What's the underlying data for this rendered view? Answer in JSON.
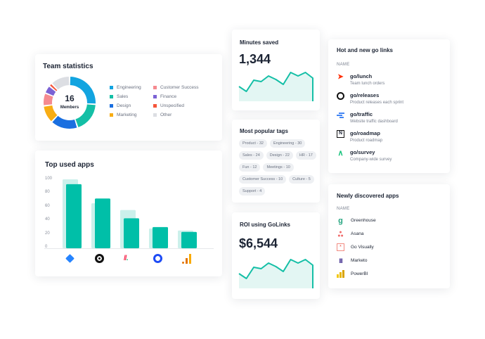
{
  "team_statistics": {
    "title": "Team statistics",
    "center_value": "16",
    "center_label": "Members",
    "legend": [
      {
        "label": "Engineering",
        "color": "#12a4e0",
        "value": 26
      },
      {
        "label": "Sales",
        "color": "#14bfa6",
        "value": 19
      },
      {
        "label": "Design",
        "color": "#1a6fe0",
        "value": 17
      },
      {
        "label": "Marketing",
        "color": "#f8ad14",
        "value": 11
      },
      {
        "label": "Customer Success",
        "color": "#f58a90",
        "value": 8
      },
      {
        "label": "Finance",
        "color": "#7b62d4",
        "value": 5
      },
      {
        "label": "Unspecified",
        "color": "#f5553a",
        "value": 2
      },
      {
        "label": "Other",
        "color": "#dcdee3",
        "value": 12
      }
    ]
  },
  "top_used_apps": {
    "title": "Top used apps",
    "chart_data": {
      "type": "bar",
      "categories": [
        "Jira",
        "GitHub",
        "Monday",
        "Productboard",
        "Google Analytics"
      ],
      "yticks": [
        "100",
        "80",
        "60",
        "40",
        "20",
        "0"
      ],
      "ylim": [
        0,
        100
      ],
      "series": [
        {
          "values": [
            101,
            66,
            56,
            29,
            26
          ],
          "color": "#cbf0eb"
        },
        {
          "values": [
            94,
            73,
            44,
            31,
            24
          ],
          "color": "#00bfa8"
        }
      ]
    }
  },
  "minutes_saved": {
    "title": "Minutes saved",
    "value": "1,344",
    "sparkline": [
      13,
      6,
      22,
      20,
      28,
      23,
      16,
      33,
      28,
      33,
      25
    ]
  },
  "popular_tags": {
    "title": "Most popular tags",
    "tags": [
      "Product - 32",
      "Engineering - 30",
      "Sales - 24",
      "Design - 22",
      "HR - 17",
      "Fun - 12",
      "Meetings - 10",
      "Customer Success - 10",
      "Culture - 5",
      "Support - 4"
    ]
  },
  "roi": {
    "title": "ROI using GoLinks",
    "value": "$6,544",
    "sparkline": [
      13,
      6,
      22,
      20,
      28,
      23,
      16,
      33,
      28,
      33,
      25
    ]
  },
  "hot_links": {
    "title": "Hot and new go links",
    "header": "NAME",
    "items": [
      {
        "name": "go/lunch",
        "desc": "Team lunch orders",
        "icon": "doordash-icon"
      },
      {
        "name": "go/releases",
        "desc": "Product releases each sprint",
        "icon": "github-icon"
      },
      {
        "name": "go/traffic",
        "desc": "Website traffic dashboard",
        "icon": "analytics-icon"
      },
      {
        "name": "go/roadmap",
        "desc": "Product roadmap",
        "icon": "notion-icon"
      },
      {
        "name": "go/survey",
        "desc": "Company-wide survey",
        "icon": "survey-icon"
      }
    ]
  },
  "new_apps": {
    "title": "Newly discovered apps",
    "header": "NAME",
    "items": [
      {
        "name": "Greenhouse",
        "icon": "greenhouse-icon"
      },
      {
        "name": "Asana",
        "icon": "asana-icon"
      },
      {
        "name": "Go Visually",
        "icon": "govisually-icon"
      },
      {
        "name": "Marketo",
        "icon": "marketo-icon"
      },
      {
        "name": "PowerBI",
        "icon": "powerbi-icon"
      }
    ]
  }
}
